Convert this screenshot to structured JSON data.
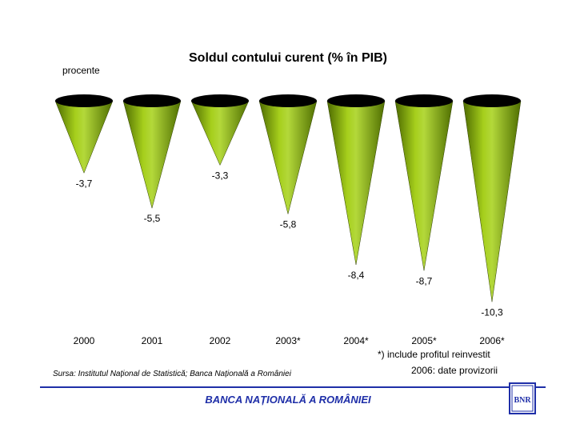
{
  "title": "Soldul contului curent (% în PIB)",
  "unit_label": "procente",
  "notes": {
    "reinvested": "*) include profitul reinvestit",
    "provisional": "2006: date provizorii"
  },
  "source": "Sursa: Institutul Național de Statistică; Banca Națională a României",
  "footer": "BANCA NAȚIONALĂ A ROMÂNIEI",
  "logo": {
    "icon": "bnr-monogram-logo",
    "text": "BNR"
  },
  "colors": {
    "cone_fill": "#8db600",
    "cone_top": "#000000",
    "brand_blue": "#1f2fa8"
  },
  "chart_data": {
    "type": "bar",
    "style": "inverted cones",
    "title": "Soldul contului curent (% în PIB)",
    "ylabel": "procente",
    "categories": [
      "2000",
      "2001",
      "2002",
      "2003*",
      "2004*",
      "2005*",
      "2006*"
    ],
    "values": [
      -3.7,
      -5.5,
      -3.3,
      -5.8,
      -8.4,
      -8.7,
      -10.3
    ],
    "value_labels": [
      "-3,7",
      "-5,5",
      "-3,3",
      "-5,8",
      "-8,4",
      "-8,7",
      "-10,3"
    ],
    "ylim": [
      -10.3,
      0
    ],
    "grid": false,
    "legend": "none"
  }
}
